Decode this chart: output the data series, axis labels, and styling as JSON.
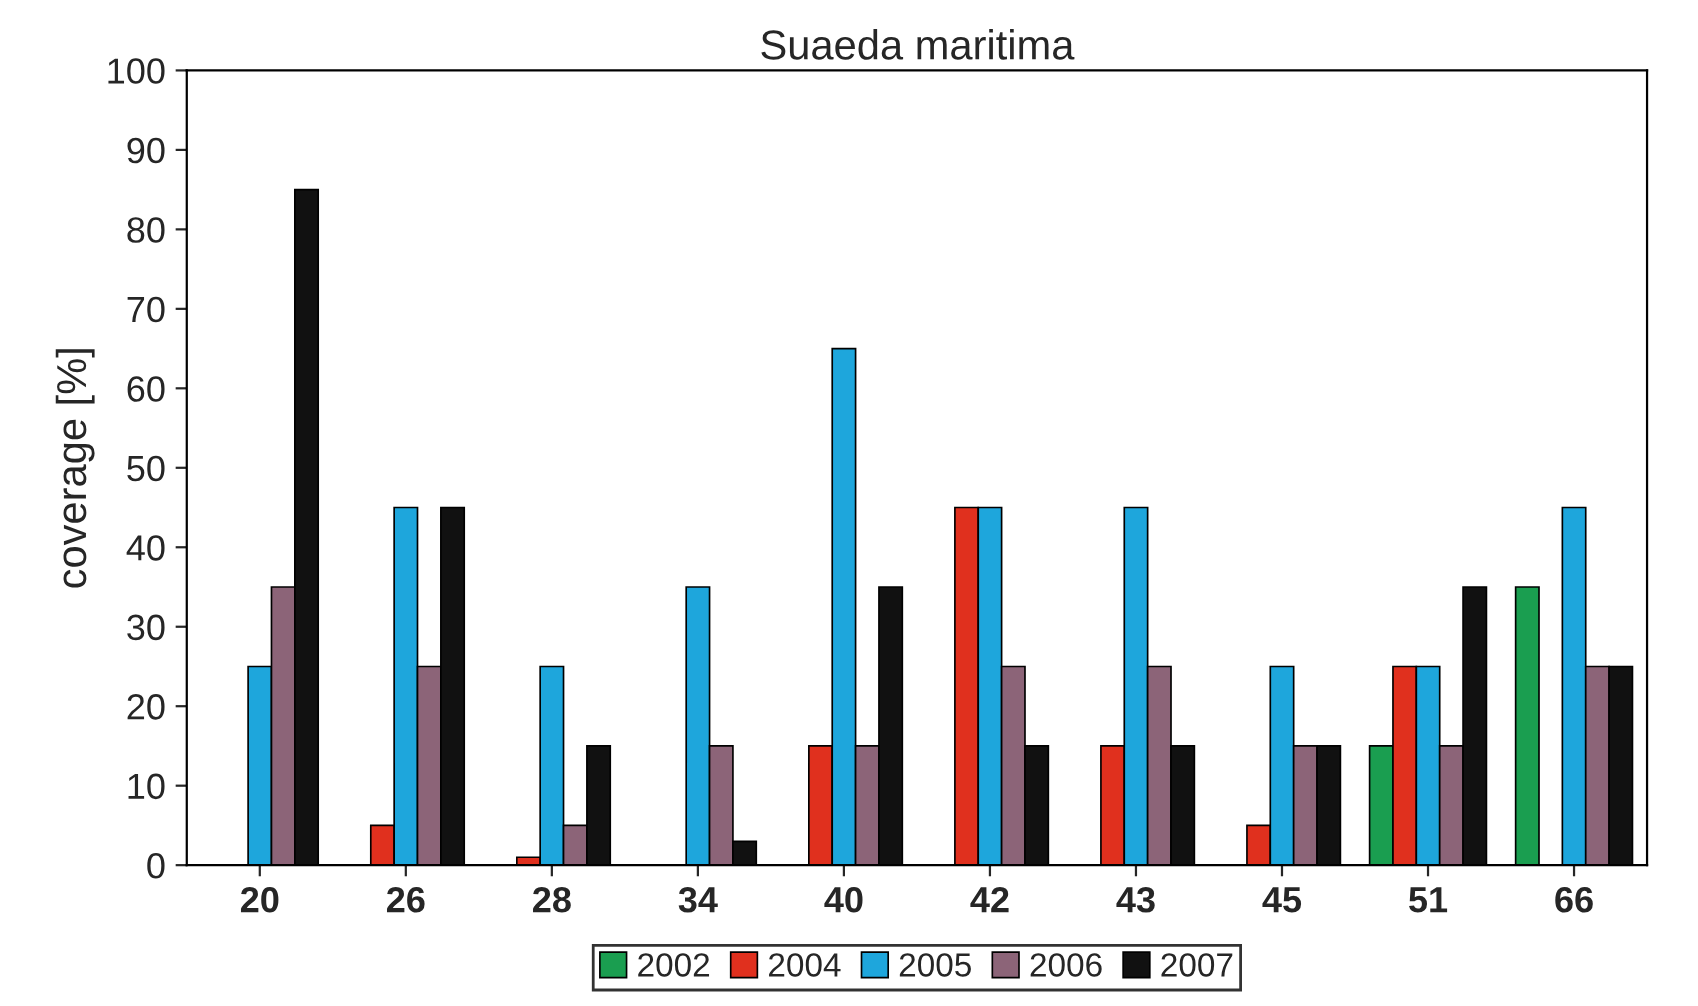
{
  "chart_data": {
    "type": "bar",
    "title": "Suaeda maritima",
    "ylabel": "coverage [%]",
    "categories": [
      "20",
      "26",
      "28",
      "34",
      "40",
      "42",
      "43",
      "45",
      "51",
      "66"
    ],
    "series": [
      {
        "name": "2002",
        "color": "#1a9e50",
        "values": [
          null,
          null,
          null,
          null,
          null,
          null,
          null,
          null,
          15,
          35
        ]
      },
      {
        "name": "2004",
        "color": "#e0301e",
        "values": [
          null,
          5,
          1,
          null,
          15,
          45,
          15,
          5,
          25,
          null
        ]
      },
      {
        "name": "2005",
        "color": "#1ea6dc",
        "values": [
          25,
          45,
          25,
          35,
          65,
          45,
          45,
          25,
          25,
          45
        ]
      },
      {
        "name": "2006",
        "color": "#8c6478",
        "values": [
          35,
          25,
          5,
          15,
          15,
          25,
          25,
          15,
          15,
          25
        ]
      },
      {
        "name": "2007",
        "color": "#111111",
        "values": [
          85,
          45,
          15,
          3,
          35,
          15,
          15,
          15,
          35,
          25
        ]
      }
    ],
    "ylim": [
      0,
      100
    ],
    "yticks": [
      0,
      10,
      20,
      30,
      40,
      50,
      60,
      70,
      80,
      90,
      100
    ],
    "grid": false,
    "legend": "bottom"
  }
}
